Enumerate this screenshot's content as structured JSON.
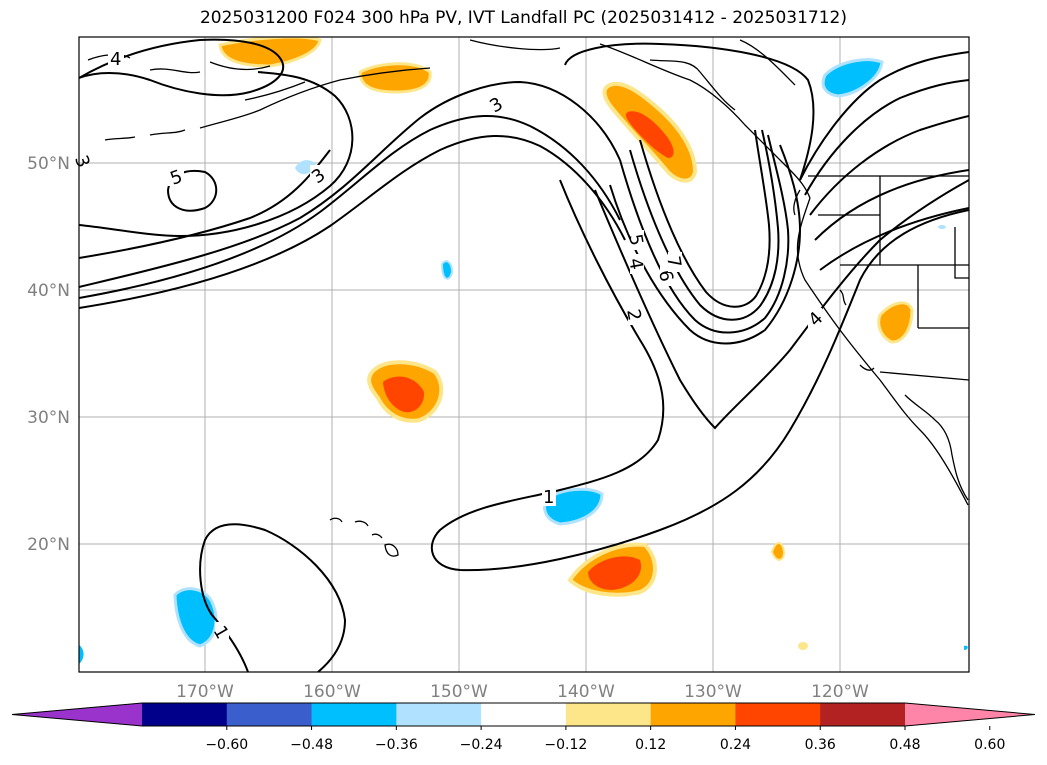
{
  "title": "2025031200 F024 300 hPa PV, IVT Landfall PC (2025031412 - 2025031712)",
  "axes": {
    "lat_labels": [
      "50°N",
      "40°N",
      "30°N",
      "20°N"
    ],
    "lon_labels": [
      "170°W",
      "160°W",
      "150°W",
      "140°W",
      "130°W",
      "120°W"
    ],
    "label_color": "#808080"
  },
  "contour_labels": [
    "4",
    "5",
    "3",
    "3",
    "3",
    "1",
    "2",
    "4",
    "5",
    "6",
    "7",
    "1",
    "4"
  ],
  "colorbar": {
    "colors": [
      "#9933cc",
      "#00008b",
      "#3a5fcd",
      "#00bfff",
      "#b0e2ff",
      "#ffffff",
      "#fde68a",
      "#ffa500",
      "#ff4500",
      "#b22222",
      "#ff85a8"
    ],
    "tick_labels": [
      "−0.60",
      "−0.48",
      "−0.36",
      "−0.24",
      "−0.12",
      "0.12",
      "0.24",
      "0.36",
      "0.48",
      "0.60"
    ]
  }
}
